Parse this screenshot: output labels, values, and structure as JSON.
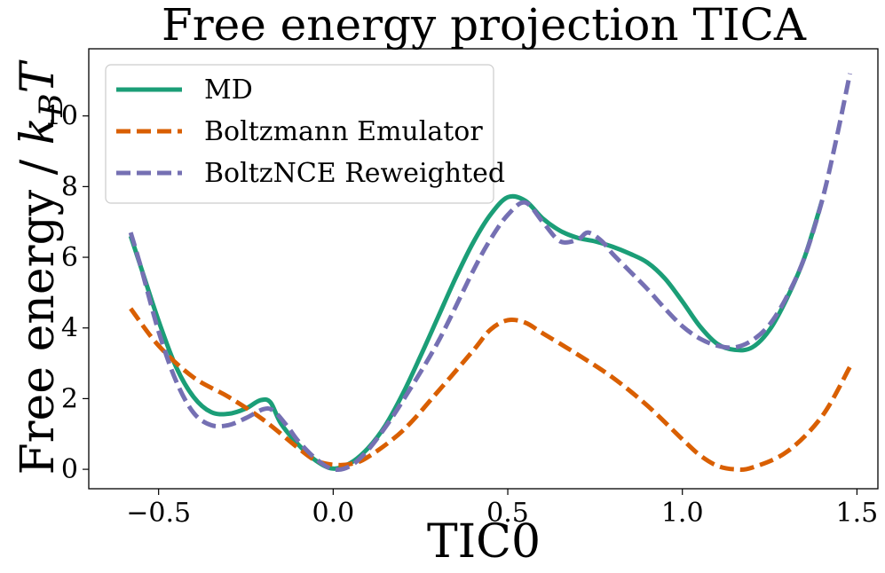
{
  "chart_data": {
    "type": "line",
    "title": "Free energy projection TICA",
    "xlabel": "TIC0",
    "ylabel": "Free energy / ",
    "ylabel_math": "k",
    "ylabel_math_sub": "B",
    "ylabel_math_end": "T",
    "xlim": [
      -0.7,
      1.56
    ],
    "ylim": [
      -0.55,
      11.9
    ],
    "xticks": [
      -0.5,
      0.0,
      0.5,
      1.0,
      1.5
    ],
    "xtick_labels": [
      "−0.5",
      "0.0",
      "0.5",
      "1.0",
      "1.5"
    ],
    "yticks": [
      0,
      2,
      4,
      6,
      8,
      10
    ],
    "ytick_labels": [
      "0",
      "2",
      "4",
      "6",
      "8",
      "10"
    ],
    "legend": {
      "position": "top-left"
    },
    "series": [
      {
        "name": "MD",
        "color": "#1b9e77",
        "dash": "solid",
        "x": [
          -0.58,
          -0.55,
          -0.5,
          -0.45,
          -0.4,
          -0.35,
          -0.3,
          -0.25,
          -0.21,
          -0.18,
          -0.15,
          -0.1,
          -0.05,
          0.0,
          0.05,
          0.1,
          0.15,
          0.2,
          0.25,
          0.3,
          0.35,
          0.4,
          0.45,
          0.5,
          0.55,
          0.6,
          0.65,
          0.7,
          0.75,
          0.8,
          0.85,
          0.9,
          0.95,
          1.0,
          1.05,
          1.1,
          1.15,
          1.2,
          1.25,
          1.3,
          1.35,
          1.4
        ],
        "y": [
          6.6,
          5.7,
          4.2,
          2.9,
          2.05,
          1.62,
          1.57,
          1.72,
          1.95,
          1.9,
          1.3,
          0.7,
          0.25,
          0.02,
          0.18,
          0.6,
          1.25,
          2.15,
          3.2,
          4.3,
          5.4,
          6.4,
          7.2,
          7.7,
          7.6,
          7.1,
          6.75,
          6.55,
          6.45,
          6.3,
          6.1,
          5.85,
          5.4,
          4.75,
          4.05,
          3.55,
          3.38,
          3.45,
          3.95,
          4.85,
          6.0,
          7.6
        ]
      },
      {
        "name": "Boltzmann Emulator",
        "color": "#d95f02",
        "dash": "dashed",
        "x": [
          -0.58,
          -0.5,
          -0.4,
          -0.3,
          -0.2,
          -0.1,
          -0.05,
          0.0,
          0.05,
          0.1,
          0.2,
          0.3,
          0.4,
          0.45,
          0.5,
          0.55,
          0.6,
          0.7,
          0.8,
          0.9,
          1.0,
          1.05,
          1.1,
          1.15,
          1.2,
          1.3,
          1.4,
          1.48
        ],
        "y": [
          4.55,
          3.5,
          2.6,
          2.05,
          1.4,
          0.6,
          0.25,
          0.13,
          0.15,
          0.35,
          1.1,
          2.2,
          3.35,
          3.95,
          4.22,
          4.15,
          3.85,
          3.25,
          2.6,
          1.8,
          0.85,
          0.4,
          0.1,
          0.0,
          0.05,
          0.5,
          1.5,
          2.9
        ]
      },
      {
        "name": "BoltzNCE Reweighted",
        "color": "#7570b3",
        "dash": "dashed",
        "x": [
          -0.58,
          -0.55,
          -0.5,
          -0.45,
          -0.4,
          -0.35,
          -0.3,
          -0.25,
          -0.2,
          -0.17,
          -0.13,
          -0.1,
          -0.05,
          0.0,
          0.05,
          0.1,
          0.15,
          0.2,
          0.3,
          0.4,
          0.45,
          0.5,
          0.55,
          0.6,
          0.65,
          0.7,
          0.73,
          0.77,
          0.8,
          0.85,
          0.9,
          0.95,
          1.0,
          1.05,
          1.1,
          1.15,
          1.2,
          1.25,
          1.3,
          1.35,
          1.4,
          1.44,
          1.48
        ],
        "y": [
          6.7,
          5.7,
          3.9,
          2.5,
          1.6,
          1.25,
          1.25,
          1.45,
          1.7,
          1.65,
          1.2,
          0.8,
          0.3,
          0.0,
          0.1,
          0.55,
          1.2,
          1.95,
          3.6,
          5.6,
          6.5,
          7.2,
          7.55,
          7.0,
          6.45,
          6.5,
          6.7,
          6.45,
          6.1,
          5.6,
          5.1,
          4.55,
          4.05,
          3.7,
          3.5,
          3.45,
          3.65,
          4.1,
          4.9,
          6.0,
          7.6,
          9.3,
          11.2
        ]
      }
    ]
  }
}
